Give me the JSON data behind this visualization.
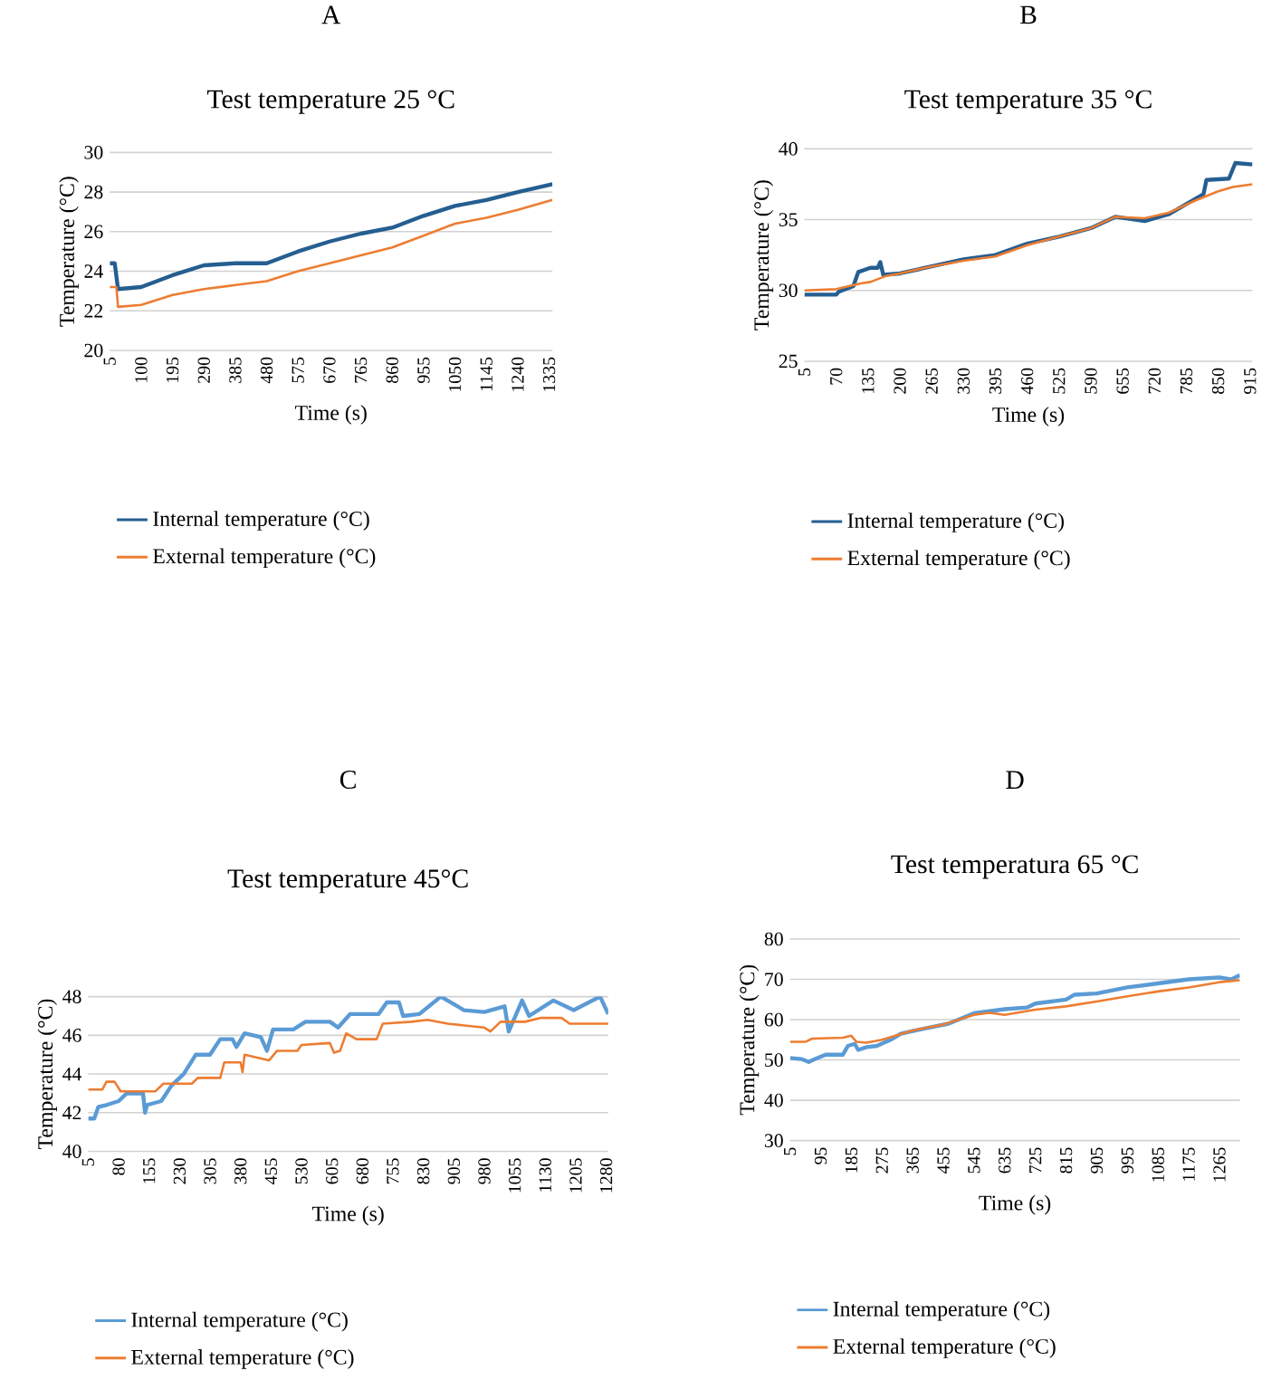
{
  "chart_data": [
    {
      "type": "line",
      "title": "Test temperature 25 °C",
      "annotations": [
        "A"
      ],
      "xlabel": "Time (s)",
      "ylabel": "Temperature  (°C)",
      "xlim": [
        5,
        1345
      ],
      "xticks": [
        5,
        100,
        195,
        290,
        385,
        480,
        575,
        670,
        765,
        860,
        955,
        1050,
        1145,
        1240,
        1335
      ],
      "ylim": [
        20,
        30
      ],
      "yticks": [
        20,
        22,
        24,
        26,
        28,
        30
      ],
      "grid": "y",
      "legend": "bottom",
      "series": [
        {
          "name": "Internal temperature (°C)",
          "color": "#255e91",
          "x": [
            5,
            20,
            30,
            100,
            195,
            290,
            385,
            480,
            575,
            670,
            765,
            860,
            955,
            1050,
            1145,
            1240,
            1345
          ],
          "values": [
            24.4,
            24.4,
            23.1,
            23.2,
            23.8,
            24.3,
            24.4,
            24.4,
            25.0,
            25.5,
            25.9,
            26.2,
            26.8,
            27.3,
            27.6,
            28.0,
            28.4
          ]
        },
        {
          "name": "External temperature (°C)",
          "color": "#ed7d31",
          "x": [
            5,
            25,
            30,
            100,
            195,
            290,
            385,
            480,
            575,
            670,
            765,
            860,
            955,
            1050,
            1145,
            1240,
            1345
          ],
          "values": [
            23.2,
            23.2,
            22.2,
            22.3,
            22.8,
            23.1,
            23.3,
            23.5,
            24.0,
            24.4,
            24.8,
            25.2,
            25.8,
            26.4,
            26.7,
            27.1,
            27.6
          ]
        }
      ]
    },
    {
      "type": "line",
      "title": "Test temperature 35 °C",
      "annotations": [
        "B"
      ],
      "xlabel": "Time (s)",
      "ylabel": "Temperature (°C)",
      "xlim": [
        5,
        920
      ],
      "xticks": [
        5,
        70,
        135,
        200,
        265,
        330,
        395,
        460,
        525,
        590,
        655,
        720,
        785,
        850,
        915
      ],
      "ylim": [
        25,
        40
      ],
      "yticks": [
        25,
        30,
        35,
        40
      ],
      "grid": "y",
      "legend": "bottom",
      "series": [
        {
          "name": "Internal temperature (°C)",
          "color": "#255e91",
          "x": [
            5,
            70,
            75,
            105,
            115,
            140,
            155,
            160,
            166,
            200,
            265,
            330,
            395,
            460,
            525,
            590,
            640,
            700,
            750,
            800,
            820,
            826,
            872,
            885,
            920
          ],
          "values": [
            29.7,
            29.7,
            29.9,
            30.3,
            31.3,
            31.6,
            31.6,
            32.0,
            31.1,
            31.2,
            31.7,
            32.2,
            32.5,
            33.3,
            33.8,
            34.4,
            35.2,
            34.9,
            35.4,
            36.4,
            36.8,
            37.8,
            37.9,
            39.0,
            38.9
          ]
        },
        {
          "name": "External temperature (°C)",
          "color": "#ed7d31",
          "x": [
            5,
            70,
            120,
            140,
            170,
            200,
            265,
            330,
            395,
            460,
            525,
            590,
            640,
            700,
            750,
            800,
            850,
            880,
            920
          ],
          "values": [
            30.0,
            30.1,
            30.5,
            30.6,
            31.0,
            31.2,
            31.7,
            32.1,
            32.4,
            33.2,
            33.8,
            34.4,
            35.2,
            35.1,
            35.5,
            36.3,
            37.0,
            37.3,
            37.5
          ]
        }
      ]
    },
    {
      "type": "line",
      "title": "Test temperature 45°C",
      "annotations": [
        "C"
      ],
      "xlabel": "Time (s)",
      "ylabel": "Temperature (°C)",
      "xlim": [
        5,
        1285
      ],
      "xticks": [
        5,
        80,
        155,
        230,
        305,
        380,
        455,
        530,
        605,
        680,
        755,
        830,
        905,
        980,
        1055,
        1130,
        1205,
        1280
      ],
      "ylim": [
        40,
        48
      ],
      "yticks": [
        40,
        42,
        44,
        46,
        48
      ],
      "grid": "y",
      "legend": "bottom",
      "series": [
        {
          "name": "Internal temperature (°C)",
          "color": "#5b9bd5",
          "x": [
            5,
            20,
            30,
            50,
            80,
            100,
            140,
            145,
            150,
            185,
            210,
            240,
            270,
            305,
            330,
            360,
            370,
            390,
            430,
            445,
            460,
            510,
            540,
            600,
            620,
            650,
            720,
            740,
            770,
            780,
            820,
            873,
            930,
            980,
            1030,
            1040,
            1073,
            1090,
            1150,
            1200,
            1265,
            1285
          ],
          "values": [
            41.7,
            41.7,
            42.3,
            42.4,
            42.6,
            43.0,
            43.0,
            42.0,
            42.4,
            42.6,
            43.4,
            44.0,
            45.0,
            45.0,
            45.8,
            45.8,
            45.4,
            46.1,
            45.9,
            45.2,
            46.3,
            46.3,
            46.7,
            46.7,
            46.4,
            47.1,
            47.1,
            47.7,
            47.7,
            47.0,
            47.1,
            48.0,
            47.3,
            47.2,
            47.5,
            46.2,
            47.8,
            47.0,
            47.8,
            47.3,
            48.0,
            47.1
          ]
        },
        {
          "name": "External temperature (°C)",
          "color": "#ed7d31",
          "x": [
            5,
            40,
            50,
            70,
            85,
            170,
            190,
            260,
            275,
            330,
            340,
            380,
            385,
            390,
            450,
            470,
            520,
            530,
            600,
            610,
            625,
            640,
            665,
            715,
            730,
            800,
            840,
            890,
            980,
            995,
            1020,
            1080,
            1120,
            1170,
            1190,
            1285
          ],
          "values": [
            43.2,
            43.2,
            43.6,
            43.6,
            43.1,
            43.1,
            43.5,
            43.5,
            43.8,
            43.8,
            44.6,
            44.6,
            44.1,
            45.0,
            44.7,
            45.2,
            45.2,
            45.5,
            45.6,
            45.1,
            45.2,
            46.1,
            45.8,
            45.8,
            46.6,
            46.7,
            46.8,
            46.6,
            46.4,
            46.2,
            46.7,
            46.7,
            46.9,
            46.9,
            46.6,
            46.6
          ]
        }
      ]
    },
    {
      "type": "line",
      "title": "Test temperatura 65 °C",
      "annotations": [
        "D"
      ],
      "xlabel": "Time (s)",
      "ylabel": "Temperature (°C)",
      "xlim": [
        5,
        1325
      ],
      "xticks": [
        5,
        95,
        185,
        275,
        365,
        455,
        545,
        635,
        725,
        815,
        905,
        995,
        1085,
        1175,
        1265
      ],
      "ylim": [
        30,
        80
      ],
      "yticks": [
        30,
        40,
        50,
        60,
        70,
        80
      ],
      "grid": "y",
      "legend": "bottom",
      "series": [
        {
          "name": "Internal temperature (°C)",
          "color": "#5b9bd5",
          "x": [
            5,
            40,
            60,
            80,
            110,
            160,
            175,
            195,
            205,
            230,
            260,
            300,
            330,
            400,
            470,
            545,
            635,
            700,
            725,
            815,
            840,
            905,
            995,
            1085,
            1175,
            1265,
            1300,
            1325
          ],
          "values": [
            50.5,
            50.2,
            49.5,
            50.3,
            51.3,
            51.3,
            53.5,
            54.0,
            52.5,
            53.2,
            53.5,
            55.0,
            56.5,
            57.8,
            59.0,
            61.6,
            62.6,
            63.0,
            64.0,
            65.0,
            66.2,
            66.5,
            68.0,
            69.0,
            70.0,
            70.5,
            70.0,
            71.0
          ]
        },
        {
          "name": "External temperature (°C)",
          "color": "#ed7d31",
          "x": [
            5,
            50,
            70,
            160,
            185,
            200,
            230,
            275,
            365,
            455,
            545,
            590,
            635,
            725,
            815,
            905,
            995,
            1085,
            1175,
            1265,
            1325
          ],
          "values": [
            54.5,
            54.5,
            55.3,
            55.5,
            56.0,
            54.5,
            54.3,
            55.0,
            57.3,
            58.8,
            61.2,
            61.7,
            61.2,
            62.5,
            63.3,
            64.5,
            65.8,
            67.0,
            68.0,
            69.3,
            69.8
          ]
        }
      ]
    }
  ]
}
